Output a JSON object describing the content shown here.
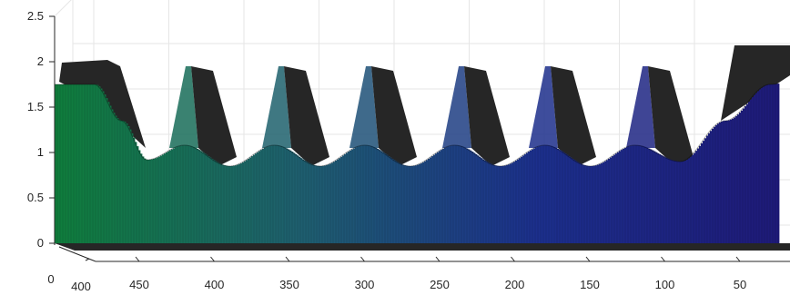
{
  "chart_data": {
    "type": "surface3d",
    "title": "",
    "xlabel": "",
    "ylabel": "",
    "zlabel": "",
    "z_ticks": [
      "0",
      "0.5",
      "1",
      "1.5",
      "2",
      "2.5"
    ],
    "z_tick_values": [
      0,
      0.5,
      1,
      1.5,
      2,
      2.5
    ],
    "zlim": [
      0,
      2.5
    ],
    "x_ticks": [
      "450",
      "400",
      "350",
      "300",
      "250",
      "200",
      "150",
      "100",
      "50"
    ],
    "x_tick_values": [
      450,
      400,
      350,
      300,
      250,
      200,
      150,
      100,
      50
    ],
    "y_ticks": [
      "0",
      "400"
    ],
    "y_tick_values": [
      0,
      400
    ],
    "grid": true,
    "colormap": [
      "#0f7d3c",
      "#1e5f6e",
      "#1c2f8c",
      "#1e1a78"
    ],
    "edge_color": "#262626",
    "peak_value": 1.95,
    "valley_value": 0.9,
    "front_profile": [
      {
        "x": 480,
        "z": 1.75
      },
      {
        "x": 462,
        "z": 1.35
      },
      {
        "x": 445,
        "z": 0.92
      },
      {
        "x": 420,
        "z": 1.08
      },
      {
        "x": 390,
        "z": 0.85
      },
      {
        "x": 360,
        "z": 1.08
      },
      {
        "x": 330,
        "z": 0.85
      },
      {
        "x": 300,
        "z": 1.08
      },
      {
        "x": 270,
        "z": 0.85
      },
      {
        "x": 240,
        "z": 1.08
      },
      {
        "x": 210,
        "z": 0.85
      },
      {
        "x": 180,
        "z": 1.08
      },
      {
        "x": 150,
        "z": 0.85
      },
      {
        "x": 120,
        "z": 1.08
      },
      {
        "x": 90,
        "z": 0.9
      },
      {
        "x": 60,
        "z": 1.35
      },
      {
        "x": 30,
        "z": 1.75
      },
      {
        "x": 5,
        "z": 1.85
      }
    ]
  }
}
